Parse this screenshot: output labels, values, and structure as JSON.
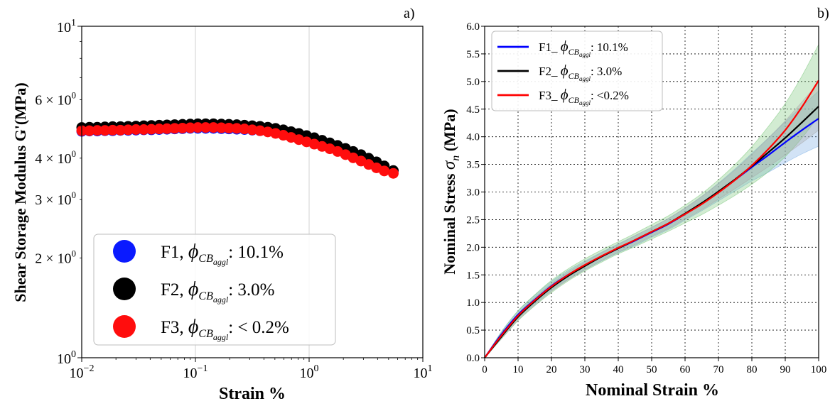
{
  "chart_data": [
    {
      "type": "scatter",
      "panel_label": "a)",
      "xlabel": "Strain %",
      "ylabel": "Shear Storage Modulus G'(MPa)",
      "x_scale": "log",
      "y_scale": "log",
      "xlim": [
        0.01,
        10
      ],
      "ylim": [
        1,
        10
      ],
      "x_ticks": [
        {
          "value": 0.01,
          "base": "10",
          "exp": "−2"
        },
        {
          "value": 0.1,
          "base": "10",
          "exp": "−1"
        },
        {
          "value": 1,
          "base": "10",
          "exp": "0"
        },
        {
          "value": 10,
          "base": "10",
          "exp": "1"
        }
      ],
      "y_ticks": [
        {
          "value": 1,
          "base": "10",
          "exp": "0"
        },
        {
          "value": 10,
          "base": "10",
          "exp": "1"
        }
      ],
      "y_minor_ticks": [
        {
          "value": 2,
          "base": "2 × 10",
          "exp": "0"
        },
        {
          "value": 3,
          "base": "3 × 10",
          "exp": "0"
        },
        {
          "value": 4,
          "base": "4 × 10",
          "exp": "0"
        },
        {
          "value": 6,
          "base": "6 × 10",
          "exp": "0"
        }
      ],
      "grid": true,
      "legend_position": "lower-left",
      "series": [
        {
          "name_prefix": "F1, ",
          "name_symbol": "ϕ",
          "name_sub": "CB",
          "name_subsub": "aggl",
          "name_suffix": ": 10.1%",
          "color": "#0a1aff",
          "x": [
            0.01,
            0.0117,
            0.0137,
            0.016,
            0.0187,
            0.0219,
            0.0256,
            0.03,
            0.0351,
            0.041,
            0.048,
            0.0562,
            0.0657,
            0.0769,
            0.09,
            0.105,
            0.123,
            0.144,
            0.169,
            0.197,
            0.231,
            0.27,
            0.316,
            0.37,
            0.433,
            0.507,
            0.593,
            0.694,
            0.812,
            0.95,
            1.11,
            1.3,
            1.52,
            1.78,
            2.09,
            2.44,
            2.86,
            3.34,
            3.91,
            4.58,
            5.5
          ],
          "y": [
            4.82,
            4.83,
            4.83,
            4.84,
            4.84,
            4.85,
            4.85,
            4.86,
            4.87,
            4.87,
            4.88,
            4.89,
            4.9,
            4.91,
            4.92,
            4.92,
            4.92,
            4.92,
            4.91,
            4.9,
            4.89,
            4.88,
            4.86,
            4.84,
            4.81,
            4.77,
            4.72,
            4.66,
            4.6,
            4.53,
            4.46,
            4.39,
            4.32,
            4.24,
            4.16,
            4.08,
            3.99,
            3.9,
            3.82,
            3.74,
            3.66
          ]
        },
        {
          "name_prefix": "F2, ",
          "name_symbol": "ϕ",
          "name_sub": "CB",
          "name_subsub": "aggl",
          "name_suffix": ": 3.0%",
          "color": "#000000",
          "x": [
            0.01,
            0.0117,
            0.0137,
            0.016,
            0.0187,
            0.0219,
            0.0256,
            0.03,
            0.0351,
            0.041,
            0.048,
            0.0562,
            0.0657,
            0.0769,
            0.09,
            0.105,
            0.123,
            0.144,
            0.169,
            0.197,
            0.231,
            0.27,
            0.316,
            0.37,
            0.433,
            0.507,
            0.593,
            0.694,
            0.812,
            0.95,
            1.11,
            1.3,
            1.52,
            1.78,
            2.09,
            2.44,
            2.86,
            3.34,
            3.91,
            4.58,
            5.5
          ],
          "y": [
            4.95,
            4.96,
            4.96,
            4.97,
            4.98,
            4.98,
            4.99,
            5.0,
            5.01,
            5.02,
            5.03,
            5.04,
            5.05,
            5.06,
            5.07,
            5.08,
            5.08,
            5.08,
            5.07,
            5.06,
            5.05,
            5.03,
            5.01,
            4.99,
            4.96,
            4.92,
            4.87,
            4.81,
            4.75,
            4.68,
            4.61,
            4.53,
            4.45,
            4.37,
            4.28,
            4.19,
            4.1,
            4.0,
            3.9,
            3.79,
            3.67
          ]
        },
        {
          "name_prefix": "F3, ",
          "name_symbol": "ϕ",
          "name_sub": "CB",
          "name_subsub": "aggl",
          "name_suffix": ": < 0.2%",
          "color": "#ff0d0d",
          "x": [
            0.01,
            0.0117,
            0.0137,
            0.016,
            0.0187,
            0.0219,
            0.0256,
            0.03,
            0.0351,
            0.041,
            0.048,
            0.0562,
            0.0657,
            0.0769,
            0.09,
            0.105,
            0.123,
            0.144,
            0.169,
            0.197,
            0.231,
            0.27,
            0.316,
            0.37,
            0.433,
            0.507,
            0.593,
            0.694,
            0.812,
            0.95,
            1.11,
            1.3,
            1.52,
            1.78,
            2.09,
            2.44,
            2.86,
            3.34,
            3.91,
            4.58,
            5.5
          ],
          "y": [
            4.84,
            4.84,
            4.85,
            4.85,
            4.86,
            4.86,
            4.87,
            4.88,
            4.88,
            4.89,
            4.9,
            4.91,
            4.92,
            4.93,
            4.94,
            4.95,
            4.95,
            4.95,
            4.94,
            4.93,
            4.92,
            4.9,
            4.87,
            4.84,
            4.8,
            4.75,
            4.69,
            4.62,
            4.55,
            4.48,
            4.41,
            4.34,
            4.27,
            4.19,
            4.1,
            4.01,
            3.92,
            3.83,
            3.74,
            3.66,
            3.6
          ]
        }
      ]
    },
    {
      "type": "line",
      "panel_label": "b)",
      "xlabel": "Nominal Strain %",
      "ylabel_prefix": "Nominal Stress ",
      "ylabel_symbol": "σ",
      "ylabel_sub": "n",
      "ylabel_suffix": " (MPa)",
      "xlim": [
        0,
        100
      ],
      "ylim": [
        0,
        6
      ],
      "x_ticks": [
        0,
        10,
        20,
        30,
        40,
        50,
        60,
        70,
        80,
        90,
        100
      ],
      "y_ticks": [
        "0.0",
        "0.5",
        "1.0",
        "1.5",
        "2.0",
        "2.5",
        "3.0",
        "3.5",
        "4.0",
        "4.5",
        "5.0",
        "5.5",
        "6.0"
      ],
      "grid": true,
      "grid_style": "dotted",
      "legend_position": "top-left",
      "series": [
        {
          "name_prefix": "F1_ ",
          "name_symbol": "ϕ",
          "name_sub": "CB",
          "name_subsub": "aggl",
          "name_suffix": ": 10.1%",
          "color": "#0000ff",
          "band_color": "#7fb0e6",
          "x": [
            0,
            5,
            10,
            15,
            20,
            25,
            30,
            35,
            40,
            45,
            50,
            55,
            60,
            65,
            70,
            75,
            80,
            85,
            90,
            95,
            100
          ],
          "y": [
            0,
            0.42,
            0.78,
            1.05,
            1.3,
            1.5,
            1.67,
            1.83,
            1.98,
            2.12,
            2.27,
            2.42,
            2.6,
            2.79,
            3.0,
            3.22,
            3.45,
            3.67,
            3.9,
            4.12,
            4.33
          ],
          "band": [
            0,
            0.05,
            0.07,
            0.08,
            0.08,
            0.08,
            0.08,
            0.08,
            0.08,
            0.09,
            0.09,
            0.1,
            0.11,
            0.13,
            0.16,
            0.2,
            0.25,
            0.31,
            0.37,
            0.43,
            0.5
          ]
        },
        {
          "name_prefix": "F2_ ",
          "name_symbol": "ϕ",
          "name_sub": "CB",
          "name_subsub": "aggl",
          "name_suffix": ": 3.0%",
          "color": "#000000",
          "band_color": "#a8a8a8",
          "x": [
            0,
            5,
            10,
            15,
            20,
            25,
            30,
            35,
            40,
            45,
            50,
            55,
            60,
            65,
            70,
            75,
            80,
            85,
            90,
            95,
            100
          ],
          "y": [
            0,
            0.38,
            0.74,
            1.02,
            1.27,
            1.48,
            1.66,
            1.83,
            1.98,
            2.13,
            2.28,
            2.43,
            2.61,
            2.8,
            3.01,
            3.23,
            3.47,
            3.72,
            3.98,
            4.26,
            4.55
          ],
          "band": [
            0,
            0.04,
            0.06,
            0.07,
            0.07,
            0.07,
            0.07,
            0.07,
            0.07,
            0.08,
            0.08,
            0.09,
            0.1,
            0.12,
            0.14,
            0.17,
            0.21,
            0.26,
            0.31,
            0.37,
            0.43
          ]
        },
        {
          "name_prefix": "F3_ ",
          "name_symbol": "ϕ",
          "name_sub": "CB",
          "name_subsub": "aggl",
          "name_suffix": ": <0.2%",
          "color": "#ff0000",
          "band_color": "#7fc87f",
          "x": [
            0,
            5,
            10,
            15,
            20,
            25,
            30,
            35,
            40,
            45,
            50,
            55,
            60,
            65,
            70,
            75,
            80,
            85,
            90,
            95,
            100
          ],
          "y": [
            0,
            0.4,
            0.76,
            1.04,
            1.29,
            1.5,
            1.68,
            1.84,
            1.99,
            2.13,
            2.28,
            2.43,
            2.6,
            2.78,
            2.99,
            3.22,
            3.48,
            3.78,
            4.12,
            4.54,
            5.02
          ],
          "band": [
            0,
            0.06,
            0.09,
            0.1,
            0.11,
            0.11,
            0.11,
            0.11,
            0.11,
            0.12,
            0.13,
            0.14,
            0.16,
            0.19,
            0.23,
            0.28,
            0.34,
            0.41,
            0.48,
            0.56,
            0.65
          ]
        }
      ]
    }
  ]
}
